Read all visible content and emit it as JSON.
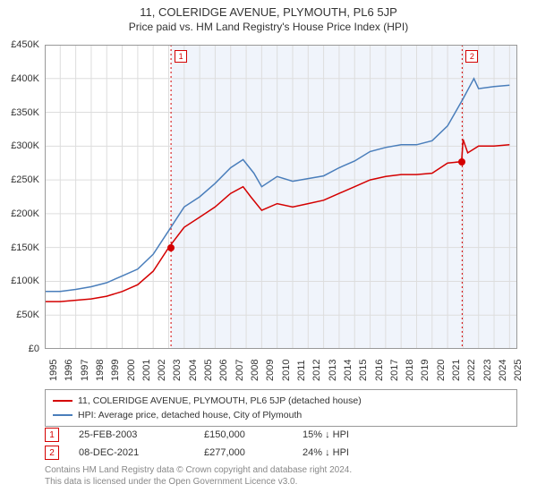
{
  "title": {
    "line1": "11, COLERIDGE AVENUE, PLYMOUTH, PL6 5JP",
    "line2": "Price paid vs. HM Land Registry's House Price Index (HPI)",
    "fontsize1": 13,
    "fontsize2": 12,
    "color": "#333333"
  },
  "chart": {
    "type": "line",
    "background_color": "#ffffff",
    "shade_color": "#f0f4fb",
    "shade_start_year": 2003.15,
    "grid_color": "#dddddd",
    "border_color": "#999999",
    "xlim": [
      1995,
      2025.5
    ],
    "ylim": [
      0,
      450000
    ],
    "ytick_step": 50000,
    "y_ticks": [
      {
        "v": 0,
        "label": "£0"
      },
      {
        "v": 50000,
        "label": "£50K"
      },
      {
        "v": 100000,
        "label": "£100K"
      },
      {
        "v": 150000,
        "label": "£150K"
      },
      {
        "v": 200000,
        "label": "£200K"
      },
      {
        "v": 250000,
        "label": "£250K"
      },
      {
        "v": 300000,
        "label": "£300K"
      },
      {
        "v": 350000,
        "label": "£350K"
      },
      {
        "v": 400000,
        "label": "£400K"
      },
      {
        "v": 450000,
        "label": "£450K"
      }
    ],
    "x_ticks": [
      1995,
      1996,
      1997,
      1998,
      1999,
      2000,
      2001,
      2002,
      2003,
      2004,
      2005,
      2006,
      2007,
      2008,
      2009,
      2010,
      2011,
      2012,
      2013,
      2014,
      2015,
      2016,
      2017,
      2018,
      2019,
      2020,
      2021,
      2022,
      2023,
      2024,
      2025
    ],
    "series": [
      {
        "name": "11, COLERIDGE AVENUE, PLYMOUTH, PL6 5JP (detached house)",
        "color": "#d40000",
        "line_width": 1.5,
        "data": [
          [
            1995,
            70000
          ],
          [
            1996,
            70000
          ],
          [
            1997,
            72000
          ],
          [
            1998,
            74000
          ],
          [
            1999,
            78000
          ],
          [
            2000,
            85000
          ],
          [
            2001,
            95000
          ],
          [
            2002,
            115000
          ],
          [
            2003,
            150000
          ],
          [
            2004,
            180000
          ],
          [
            2005,
            195000
          ],
          [
            2006,
            210000
          ],
          [
            2007,
            230000
          ],
          [
            2007.8,
            240000
          ],
          [
            2008.3,
            225000
          ],
          [
            2009,
            205000
          ],
          [
            2010,
            215000
          ],
          [
            2011,
            210000
          ],
          [
            2012,
            215000
          ],
          [
            2013,
            220000
          ],
          [
            2014,
            230000
          ],
          [
            2015,
            240000
          ],
          [
            2016,
            250000
          ],
          [
            2017,
            255000
          ],
          [
            2018,
            258000
          ],
          [
            2019,
            258000
          ],
          [
            2020,
            260000
          ],
          [
            2021,
            275000
          ],
          [
            2021.9,
            277000
          ],
          [
            2022,
            310000
          ],
          [
            2022.3,
            290000
          ],
          [
            2023,
            300000
          ],
          [
            2024,
            300000
          ],
          [
            2025,
            302000
          ]
        ]
      },
      {
        "name": "HPI: Average price, detached house, City of Plymouth",
        "color": "#4a7ebb",
        "line_width": 1.5,
        "data": [
          [
            1995,
            85000
          ],
          [
            1996,
            85000
          ],
          [
            1997,
            88000
          ],
          [
            1998,
            92000
          ],
          [
            1999,
            98000
          ],
          [
            2000,
            108000
          ],
          [
            2001,
            118000
          ],
          [
            2002,
            140000
          ],
          [
            2003,
            175000
          ],
          [
            2004,
            210000
          ],
          [
            2005,
            225000
          ],
          [
            2006,
            245000
          ],
          [
            2007,
            268000
          ],
          [
            2007.8,
            280000
          ],
          [
            2008.5,
            260000
          ],
          [
            2009,
            240000
          ],
          [
            2010,
            255000
          ],
          [
            2011,
            248000
          ],
          [
            2012,
            252000
          ],
          [
            2013,
            256000
          ],
          [
            2014,
            268000
          ],
          [
            2015,
            278000
          ],
          [
            2016,
            292000
          ],
          [
            2017,
            298000
          ],
          [
            2018,
            302000
          ],
          [
            2019,
            302000
          ],
          [
            2020,
            308000
          ],
          [
            2021,
            330000
          ],
          [
            2022,
            370000
          ],
          [
            2022.7,
            400000
          ],
          [
            2023,
            385000
          ],
          [
            2024,
            388000
          ],
          [
            2025,
            390000
          ]
        ]
      }
    ],
    "markers": [
      {
        "n": "1",
        "year": 2003.15,
        "price": 150000,
        "date": "25-FEB-2003",
        "price_label": "£150,000",
        "delta": "15% ↓ HPI",
        "box_color": "#d40000",
        "dot_color": "#d40000"
      },
      {
        "n": "2",
        "year": 2021.94,
        "price": 277000,
        "date": "08-DEC-2021",
        "price_label": "£277,000",
        "delta": "24% ↓ HPI",
        "box_color": "#d40000",
        "dot_color": "#d40000"
      }
    ],
    "vline_color": "#d40000",
    "label_fontsize": 11
  },
  "legend": {
    "border_color": "#999999",
    "fontsize": 10.5,
    "items": [
      {
        "color": "#d40000",
        "label": "11, COLERIDGE AVENUE, PLYMOUTH, PL6 5JP (detached house)"
      },
      {
        "color": "#4a7ebb",
        "label": "HPI: Average price, detached house, City of Plymouth"
      }
    ]
  },
  "footer": {
    "line1": "Contains HM Land Registry data © Crown copyright and database right 2024.",
    "line2": "This data is licensed under the Open Government Licence v3.0.",
    "color": "#888888",
    "fontsize": 10
  }
}
